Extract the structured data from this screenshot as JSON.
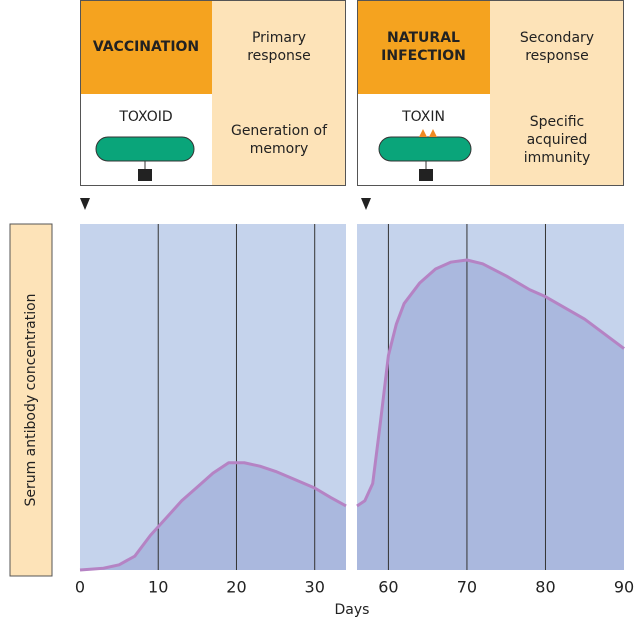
{
  "boxes": [
    {
      "title": "VACCINATION",
      "response": "Primary response",
      "agent": "TOXOID",
      "effect": "Generation of memory"
    },
    {
      "title": "NATURAL INFECTION",
      "response": "Secondary response",
      "agent": "TOXIN",
      "effect": "Specific acquired immunity"
    }
  ],
  "chart_data": [
    {
      "type": "area",
      "ylabel": "Serum antibody concentration",
      "xlabel": "Days",
      "x": [
        0,
        3,
        5,
        7,
        9,
        11,
        13,
        15,
        17,
        19,
        21,
        23,
        25,
        27,
        30,
        32,
        34
      ],
      "values": [
        0,
        0.5,
        1.5,
        4,
        10,
        15,
        20,
        24,
        28,
        31,
        31,
        30,
        28.5,
        26.6,
        23.7,
        21,
        18.5
      ],
      "xlim": [
        0,
        34
      ],
      "ylim": [
        0,
        100
      ],
      "xticks": [
        0,
        10,
        20,
        30
      ],
      "grid": true,
      "color": "#aab8de",
      "line_color": "#b583c4"
    },
    {
      "type": "area",
      "x": [
        56,
        57,
        58,
        59,
        60,
        61,
        62,
        64,
        66,
        68,
        70,
        72,
        75,
        78,
        80,
        85,
        90
      ],
      "values": [
        18.5,
        20,
        25,
        43,
        62,
        71,
        77,
        83,
        87,
        89,
        89.6,
        88.5,
        85,
        81,
        79,
        72.5,
        64
      ],
      "xlim": [
        56,
        90
      ],
      "ylim": [
        0,
        100
      ],
      "xticks": [
        60,
        70,
        80,
        90
      ],
      "grid": true,
      "color": "#aab8de",
      "line_color": "#b583c4"
    }
  ]
}
